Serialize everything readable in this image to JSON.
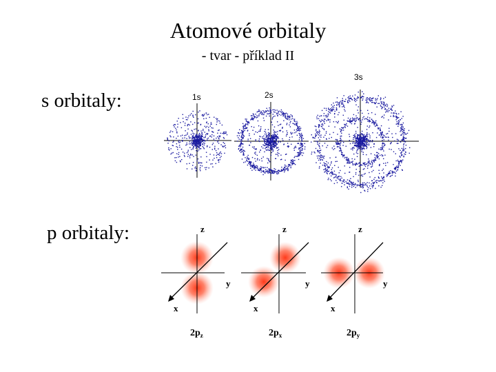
{
  "slide": {
    "title": "Atomové orbitaly",
    "subtitle": "- tvar - příklad II"
  },
  "s_section": {
    "label": "s orbitaly:",
    "orbitals": [
      {
        "name": "1s",
        "rings": 0
      },
      {
        "name": "2s",
        "rings": 1
      },
      {
        "name": "3s",
        "rings": 2
      }
    ]
  },
  "p_section": {
    "label": "p orbitaly:",
    "orbitals": [
      {
        "name": "2p",
        "subscript": "z",
        "orientation": "z"
      },
      {
        "name": "2p",
        "subscript": "x",
        "orientation": "x"
      },
      {
        "name": "2p",
        "subscript": "y",
        "orientation": "y"
      }
    ],
    "axis_labels": {
      "z": "z",
      "y": "y",
      "x": "x"
    }
  },
  "colors": {
    "dot": "#1a1aa0",
    "lobe": "#ff3a1a",
    "axis": "#000000"
  }
}
